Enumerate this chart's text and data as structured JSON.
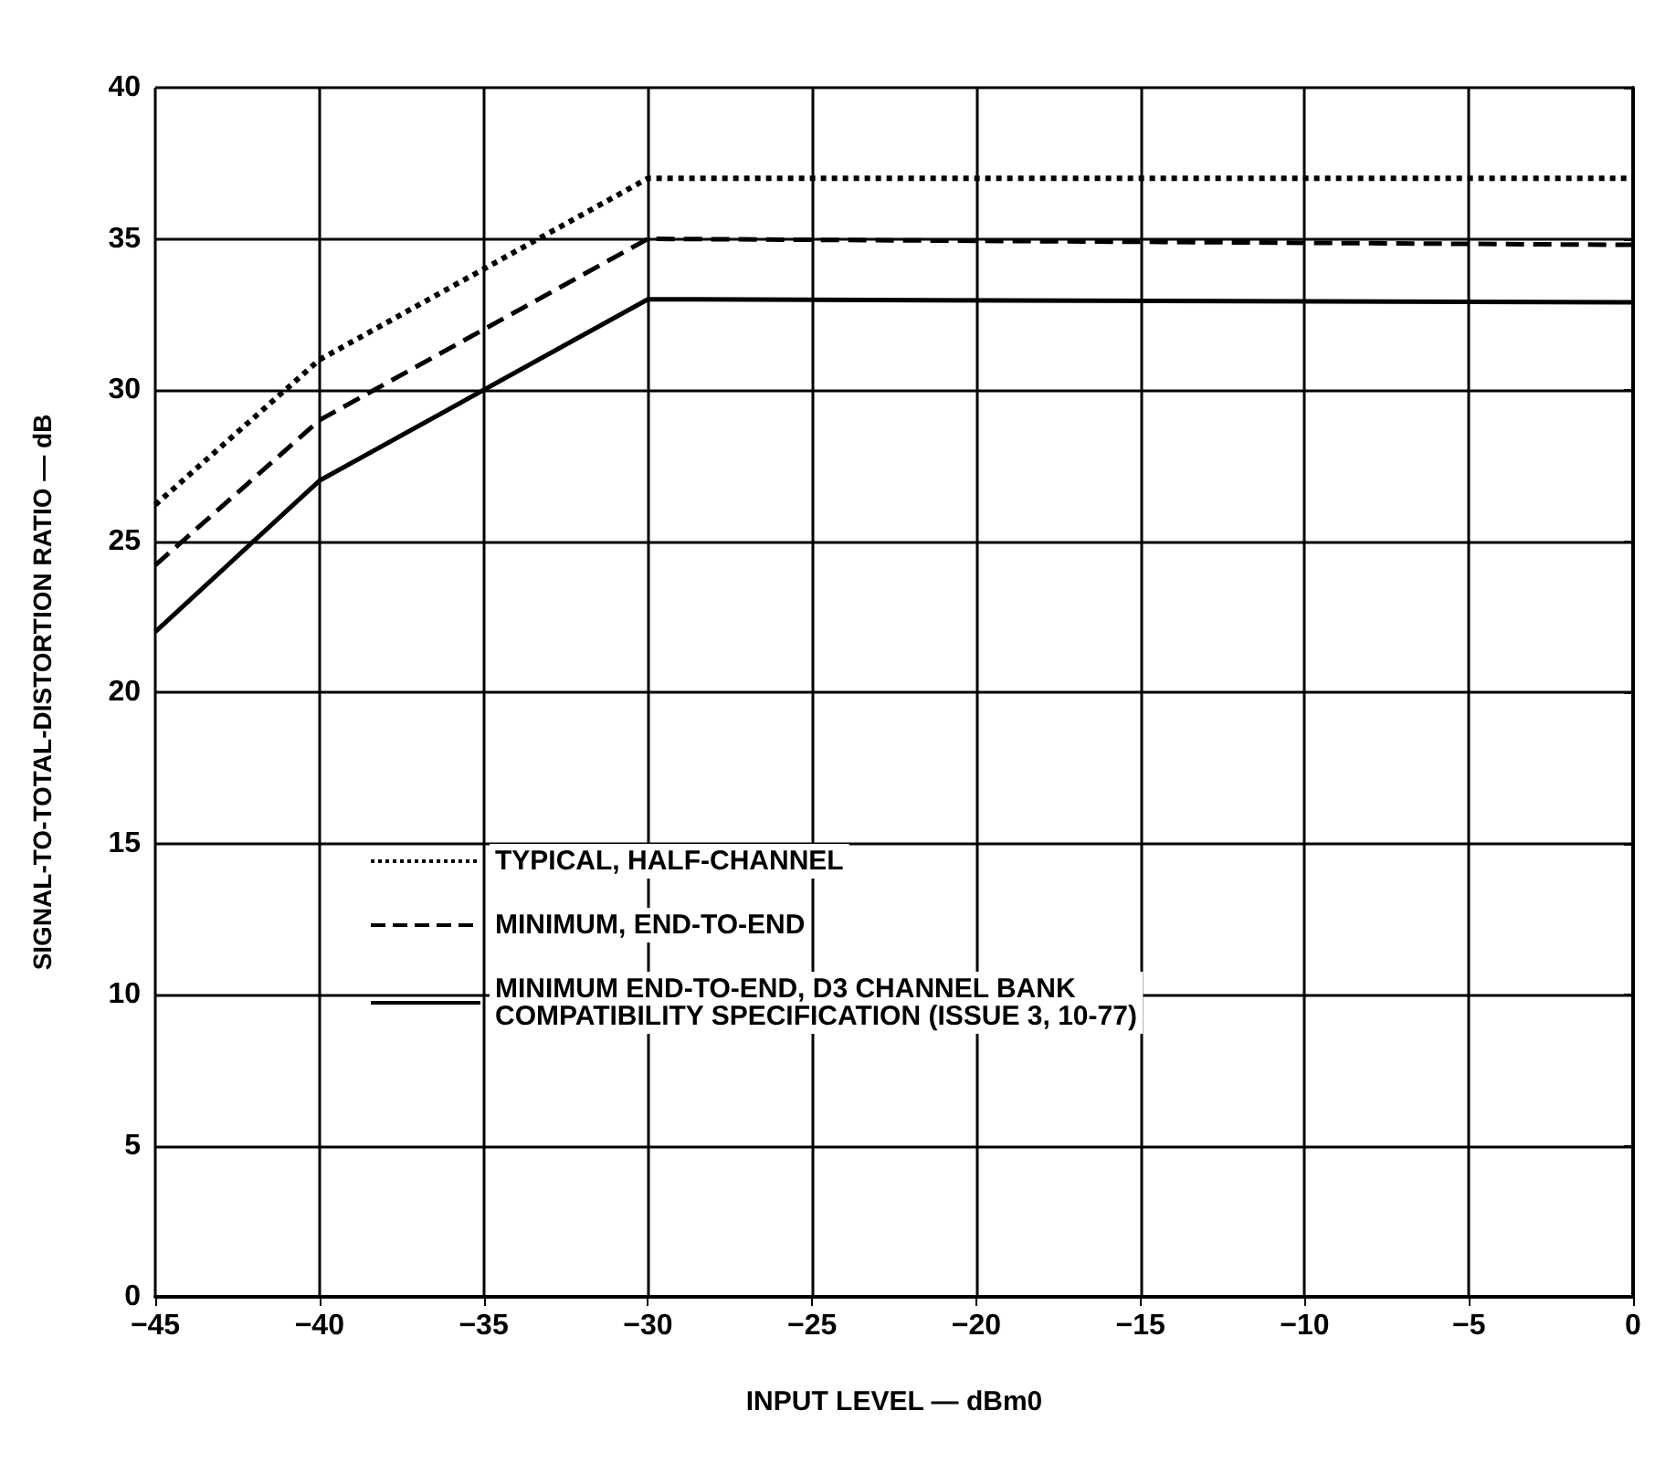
{
  "chart_data": {
    "type": "line",
    "xlabel": "INPUT LEVEL — dBm0",
    "ylabel": "SIGNAL-TO-TOTAL-DISTORTION RATIO — dB",
    "x": [
      -45,
      -40,
      -30,
      0
    ],
    "series": [
      {
        "name": "TYPICAL, HALF-CHANNEL",
        "color": "#000000",
        "line_style": "dotted",
        "values": [
          26.2,
          31,
          37,
          37
        ]
      },
      {
        "name": "MINIMUM, END-TO-END",
        "color": "#000000",
        "line_style": "dashed",
        "values": [
          24.2,
          29,
          35,
          34.8
        ]
      },
      {
        "name": "MINIMUM END-TO-END, D3 CHANNEL BANK\nCOMPATIBILITY SPECIFICATION (ISSUE 3, 10-77)",
        "color": "#000000",
        "line_style": "solid",
        "values": [
          22,
          27,
          33,
          32.9
        ]
      }
    ],
    "xlim": [
      -45,
      0
    ],
    "xticks": [
      -45,
      -40,
      -35,
      -30,
      -25,
      -20,
      -15,
      -10,
      -5,
      0
    ],
    "ylim": [
      0,
      40
    ],
    "yticks": [
      0,
      5,
      10,
      15,
      20,
      25,
      30,
      35,
      40
    ],
    "grid": true,
    "legend": "left",
    "marker": "none"
  }
}
